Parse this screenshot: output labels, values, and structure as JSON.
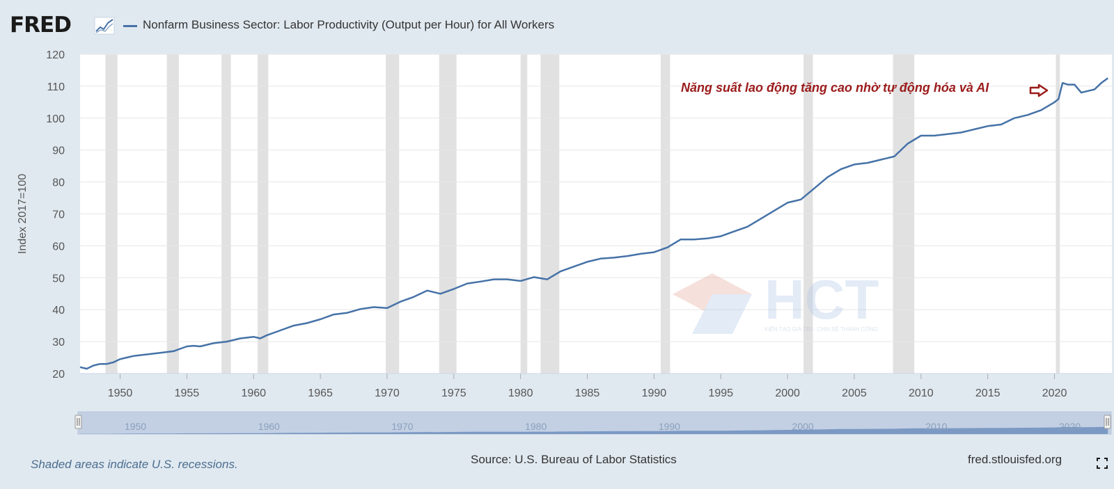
{
  "header": {
    "logo_text": "FRED",
    "series_title": "Nonfarm Business Sector: Labor Productivity (Output per Hour) for All Workers"
  },
  "footer": {
    "note": "Shaded areas indicate U.S. recessions.",
    "source": "Source: U.S. Bureau of Labor Statistics",
    "url": "fred.stlouisfed.org"
  },
  "annotation": {
    "text": "Năng suất lao động tăng cao nhờ tự động hóa và AI",
    "color": "#9b1b1b"
  },
  "watermark": {
    "text": "HCT",
    "tagline": "KIẾN TẠO GIÁ TRỊ - CHIA SẺ THÀNH CÔNG"
  },
  "colors": {
    "line": "#4572a7",
    "recession": "#e1e1e1",
    "background": "#e1e9f0"
  },
  "chart_data": {
    "type": "line",
    "title": "Nonfarm Business Sector: Labor Productivity (Output per Hour) for All Workers",
    "ylabel": "Index 2017=100",
    "xlabel": "",
    "xlim": [
      1947,
      2024.3
    ],
    "ylim": [
      20,
      120
    ],
    "x_ticks": [
      1950,
      1955,
      1960,
      1965,
      1970,
      1975,
      1980,
      1985,
      1990,
      1995,
      2000,
      2005,
      2010,
      2015,
      2020
    ],
    "y_ticks": [
      20,
      30,
      40,
      50,
      60,
      70,
      80,
      90,
      100,
      110,
      120
    ],
    "grid": true,
    "recessions": [
      [
        1948.9,
        1949.8
      ],
      [
        1953.5,
        1954.4
      ],
      [
        1957.6,
        1958.3
      ],
      [
        1960.3,
        1961.1
      ],
      [
        1969.9,
        1970.9
      ],
      [
        1973.9,
        1975.2
      ],
      [
        1980.0,
        1980.5
      ],
      [
        1981.5,
        1982.9
      ],
      [
        1990.5,
        1991.2
      ],
      [
        2001.2,
        2001.9
      ],
      [
        2007.9,
        2009.5
      ],
      [
        2020.1,
        2020.4
      ]
    ],
    "series": [
      {
        "x": [
          1947.0,
          1947.5,
          1948.0,
          1948.5,
          1949.0,
          1949.5,
          1950.0,
          1950.5,
          1951.0,
          1952.0,
          1953.0,
          1954.0,
          1955.0,
          1955.5,
          1956.0,
          1957.0,
          1958.0,
          1959.0,
          1960.0,
          1960.5,
          1961.0,
          1962.0,
          1963.0,
          1964.0,
          1965.0,
          1966.0,
          1967.0,
          1968.0,
          1969.0,
          1970.0,
          1971.0,
          1972.0,
          1973.0,
          1974.0,
          1975.0,
          1976.0,
          1977.0,
          1978.0,
          1979.0,
          1980.0,
          1981.0,
          1982.0,
          1983.0,
          1984.0,
          1985.0,
          1986.0,
          1987.0,
          1988.0,
          1989.0,
          1990.0,
          1991.0,
          1992.0,
          1993.0,
          1994.0,
          1995.0,
          1996.0,
          1997.0,
          1998.0,
          1999.0,
          2000.0,
          2001.0,
          2002.0,
          2003.0,
          2004.0,
          2005.0,
          2006.0,
          2007.0,
          2008.0,
          2009.0,
          2010.0,
          2011.0,
          2012.0,
          2013.0,
          2014.0,
          2015.0,
          2016.0,
          2017.0,
          2018.0,
          2019.0,
          2020.0,
          2020.3,
          2020.6,
          2021.0,
          2021.5,
          2022.0,
          2022.5,
          2023.0,
          2023.5,
          2024.0
        ],
        "y": [
          22.0,
          21.5,
          22.5,
          23.0,
          23.0,
          23.5,
          24.5,
          25.0,
          25.5,
          26.0,
          26.5,
          27.0,
          28.5,
          28.7,
          28.5,
          29.5,
          30.0,
          31.0,
          31.5,
          31.0,
          32.0,
          33.5,
          35.0,
          35.8,
          37.0,
          38.5,
          39.0,
          40.2,
          40.8,
          40.5,
          42.5,
          44.0,
          46.0,
          45.0,
          46.5,
          48.2,
          48.8,
          49.5,
          49.5,
          49.0,
          50.2,
          49.5,
          52.0,
          53.5,
          55.0,
          56.0,
          56.3,
          56.8,
          57.5,
          58.0,
          59.5,
          62.0,
          62.0,
          62.3,
          63.0,
          64.5,
          66.0,
          68.5,
          71.0,
          73.5,
          74.5,
          78.0,
          81.5,
          84.0,
          85.5,
          86.0,
          87.0,
          88.0,
          92.0,
          94.5,
          94.5,
          95.0,
          95.5,
          96.5,
          97.5,
          98.0,
          100.0,
          101.0,
          102.5,
          105.0,
          106.0,
          111.0,
          110.5,
          110.5,
          108.0,
          108.5,
          109.0,
          111.0,
          112.5
        ]
      }
    ]
  }
}
